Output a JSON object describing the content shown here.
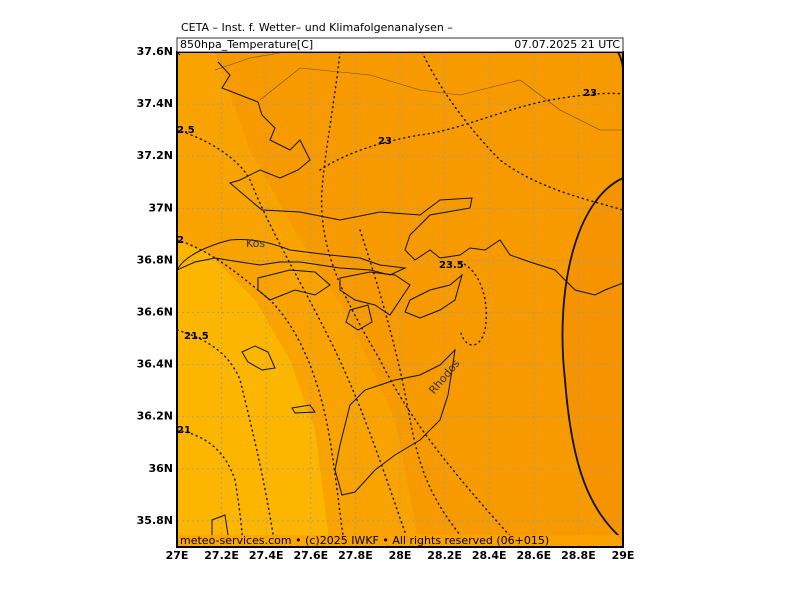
{
  "header": {
    "title": "CETA – Inst. f. Wetter– und Klimafolgenanalysen –",
    "field": "850hpa_Temperature[C]",
    "time": "07.07.2025 21 UTC"
  },
  "footer": "meteo-services.com • (c)2025 IWKF • All rights reserved (06+015)",
  "map": {
    "xlim": [
      27,
      29
    ],
    "ylim": [
      35.7,
      37.6
    ],
    "xticks": [
      {
        "value": 27,
        "label": "27E"
      },
      {
        "value": 27.2,
        "label": "27.2E"
      },
      {
        "value": 27.4,
        "label": "27.4E"
      },
      {
        "value": 27.6,
        "label": "27.6E"
      },
      {
        "value": 27.8,
        "label": "27.8E"
      },
      {
        "value": 28,
        "label": "28E"
      },
      {
        "value": 28.2,
        "label": "28.2E"
      },
      {
        "value": 28.4,
        "label": "28.4E"
      },
      {
        "value": 28.6,
        "label": "28.6E"
      },
      {
        "value": 28.8,
        "label": "28.8E"
      },
      {
        "value": 29,
        "label": "29E"
      }
    ],
    "yticks": [
      {
        "value": 35.8,
        "label": "35.8N"
      },
      {
        "value": 36,
        "label": "36N"
      },
      {
        "value": 36.2,
        "label": "36.2N"
      },
      {
        "value": 36.4,
        "label": "36.4N"
      },
      {
        "value": 36.6,
        "label": "36.6N"
      },
      {
        "value": 36.8,
        "label": "36.8N"
      },
      {
        "value": 37,
        "label": "37N"
      },
      {
        "value": 37.2,
        "label": "37.2N"
      },
      {
        "value": 37.4,
        "label": "37.4N"
      },
      {
        "value": 37.6,
        "label": "37.6N"
      }
    ],
    "contour_labels": [
      "23",
      "23",
      "23.5",
      "2.5",
      "2",
      "21.5",
      "21"
    ],
    "places": [
      "Kos",
      "Rhodos"
    ]
  }
}
